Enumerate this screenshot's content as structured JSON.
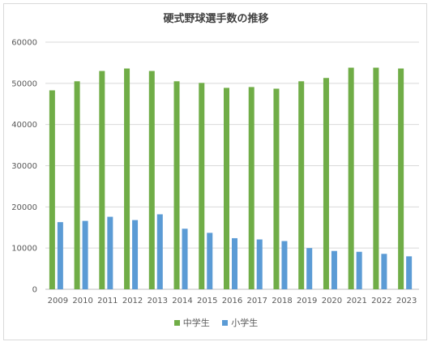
{
  "chart_data": {
    "type": "bar",
    "title": "硬式野球選手数の推移",
    "categories": [
      "2009",
      "2010",
      "2011",
      "2012",
      "2013",
      "2014",
      "2015",
      "2016",
      "2017",
      "2018",
      "2019",
      "2020",
      "2021",
      "2022",
      "2023"
    ],
    "series": [
      {
        "name": "中学生",
        "color": "#70ad47",
        "values": [
          48300,
          50500,
          53000,
          53600,
          53000,
          50500,
          50100,
          48900,
          49100,
          48700,
          50500,
          51300,
          53800,
          53800,
          53600
        ]
      },
      {
        "name": "小学生",
        "color": "#5b9bd5",
        "values": [
          16300,
          16600,
          17600,
          16800,
          18200,
          14700,
          13700,
          12400,
          12100,
          11700,
          10000,
          9300,
          9100,
          8600,
          8000
        ]
      }
    ],
    "ylim": [
      0,
      60000
    ],
    "yticks": [
      "0",
      "10000",
      "20000",
      "30000",
      "40000",
      "50000",
      "60000"
    ],
    "grid": true,
    "legend_position": "bottom"
  }
}
